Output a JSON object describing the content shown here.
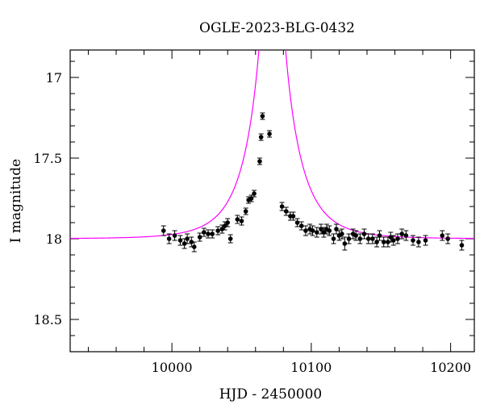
{
  "chart_data": {
    "type": "scatter",
    "title": "OGLE-2023-BLG-0432",
    "xlabel": "HJD - 2450000",
    "ylabel": "I magnitude",
    "xlim": [
      9927,
      10217
    ],
    "ylim": [
      18.7,
      16.83
    ],
    "y_inverted": true,
    "x_ticks": [
      10000,
      10100,
      10200
    ],
    "y_ticks": [
      17,
      17.5,
      18,
      18.5
    ],
    "grid": false,
    "colors": {
      "model": "#ff00ff",
      "points": "#000000",
      "axes": "#000000"
    },
    "model": {
      "t0": 10072,
      "u0": 0.025,
      "tE": 27,
      "m_base": 18.0
    },
    "series": [
      {
        "values": [
          [
            9994,
            17.95,
            0.03
          ],
          [
            9998,
            18.0,
            0.03
          ],
          [
            10002,
            17.98,
            0.03
          ],
          [
            10006,
            18.01,
            0.03
          ],
          [
            10009,
            18.03,
            0.03
          ],
          [
            10011,
            18.0,
            0.03
          ],
          [
            10014,
            18.02,
            0.03
          ],
          [
            10016,
            18.05,
            0.03
          ],
          [
            10020,
            17.99,
            0.025
          ],
          [
            10023,
            17.96,
            0.025
          ],
          [
            10026,
            17.97,
            0.025
          ],
          [
            10029,
            17.97,
            0.025
          ],
          [
            10033,
            17.95,
            0.025
          ],
          [
            10036,
            17.94,
            0.025
          ],
          [
            10038,
            17.92,
            0.025
          ],
          [
            10040,
            17.9,
            0.025
          ],
          [
            10042,
            18.0,
            0.025
          ],
          [
            10047,
            17.88,
            0.025
          ],
          [
            10050,
            17.89,
            0.025
          ],
          [
            10053,
            17.83,
            0.02
          ],
          [
            10055,
            17.76,
            0.02
          ],
          [
            10057,
            17.75,
            0.02
          ],
          [
            10059,
            17.72,
            0.02
          ],
          [
            10063,
            17.52,
            0.02
          ],
          [
            10064,
            17.37,
            0.02
          ],
          [
            10065,
            17.24,
            0.02
          ],
          [
            10070,
            17.35,
            0.02
          ],
          [
            10079,
            17.8,
            0.025
          ],
          [
            10082,
            17.83,
            0.025
          ],
          [
            10085,
            17.86,
            0.025
          ],
          [
            10087,
            17.86,
            0.025
          ],
          [
            10090,
            17.9,
            0.025
          ],
          [
            10093,
            17.92,
            0.025
          ],
          [
            10096,
            17.95,
            0.03
          ],
          [
            10099,
            17.94,
            0.03
          ],
          [
            10101,
            17.95,
            0.03
          ],
          [
            10104,
            17.96,
            0.03
          ],
          [
            10107,
            17.94,
            0.03
          ],
          [
            10109,
            17.96,
            0.03
          ],
          [
            10111,
            17.94,
            0.03
          ],
          [
            10113,
            17.95,
            0.03
          ],
          [
            10116,
            18.0,
            0.03
          ],
          [
            10118,
            17.94,
            0.03
          ],
          [
            10120,
            17.98,
            0.03
          ],
          [
            10122,
            17.97,
            0.03
          ],
          [
            10124,
            18.03,
            0.04
          ],
          [
            10127,
            18.0,
            0.03
          ],
          [
            10130,
            17.97,
            0.03
          ],
          [
            10132,
            17.98,
            0.03
          ],
          [
            10135,
            18.0,
            0.03
          ],
          [
            10138,
            17.97,
            0.03
          ],
          [
            10141,
            18.0,
            0.03
          ],
          [
            10144,
            18.0,
            0.03
          ],
          [
            10147,
            18.02,
            0.03
          ],
          [
            10149,
            17.98,
            0.03
          ],
          [
            10152,
            18.02,
            0.03
          ],
          [
            10155,
            18.02,
            0.03
          ],
          [
            10157,
            17.99,
            0.03
          ],
          [
            10159,
            18.01,
            0.03
          ],
          [
            10162,
            18.0,
            0.03
          ],
          [
            10165,
            17.97,
            0.03
          ],
          [
            10168,
            17.98,
            0.03
          ],
          [
            10173,
            18.01,
            0.03
          ],
          [
            10177,
            18.02,
            0.03
          ],
          [
            10182,
            18.01,
            0.03
          ],
          [
            10194,
            17.98,
            0.03
          ],
          [
            10198,
            18.0,
            0.03
          ],
          [
            10208,
            18.04,
            0.03
          ]
        ]
      }
    ]
  }
}
